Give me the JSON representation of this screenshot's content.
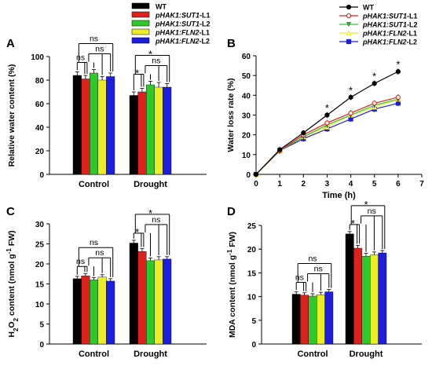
{
  "colors": {
    "WT": "#000000",
    "pHAK1:SUT1-L1": "#e0201b",
    "pHAK1:SUT1-L2": "#2fc92c",
    "pHAK1:FLN2-L1": "#eded26",
    "pHAK1:FLN2-L2": "#1d1ddd"
  },
  "chart_data": [
    {
      "panel": "A",
      "type": "bar",
      "ylabel": "Relative water content (%)",
      "ylim": [
        0,
        100
      ],
      "yticks": [
        0,
        20,
        40,
        60,
        80,
        100
      ],
      "categories": [
        "Control",
        "Drought"
      ],
      "legend": {
        "placement": "top-right",
        "entries": [
          "WT",
          "pHAK1:SUT1-L1",
          "pHAK1:SUT1-L2",
          "pHAK1:FLN2-L1",
          "pHAK1:FLN2-L2"
        ]
      },
      "series": [
        {
          "name": "WT",
          "values": [
            84,
            67
          ],
          "errors": [
            3,
            3
          ]
        },
        {
          "name": "pHAK1:SUT1-L1",
          "values": [
            81,
            70
          ],
          "errors": [
            3,
            3
          ]
        },
        {
          "name": "pHAK1:SUT1-L2",
          "values": [
            86,
            76
          ],
          "errors": [
            3,
            3
          ]
        },
        {
          "name": "pHAK1:FLN2-L1",
          "values": [
            80,
            74
          ],
          "errors": [
            3,
            4
          ]
        },
        {
          "name": "pHAK1:FLN2-L2",
          "values": [
            83,
            74
          ],
          "errors": [
            3,
            3
          ]
        }
      ],
      "significance": [
        {
          "group": "Control",
          "labels": [
            "ns",
            "ns",
            "ns"
          ]
        },
        {
          "group": "Drought",
          "labels": [
            "*",
            "ns",
            "*"
          ]
        }
      ]
    },
    {
      "panel": "B",
      "type": "line",
      "xlabel": "Time (h)",
      "ylabel": "Water loss rate (%)",
      "xlim": [
        0,
        7
      ],
      "ylim": [
        0,
        60
      ],
      "xticks": [
        0,
        1,
        2,
        3,
        4,
        5,
        6,
        7
      ],
      "yticks": [
        0,
        10,
        20,
        30,
        40,
        50,
        60
      ],
      "x": [
        0,
        1,
        2,
        3,
        4,
        5,
        6
      ],
      "legend": {
        "placement": "top-right",
        "entries": [
          "WT",
          "pHAK1:SUT1-L1",
          "pHAK1:SUT1-L2",
          "pHAK1:FLN2-L1",
          "pHAK1:FLN2-L2"
        ]
      },
      "series": [
        {
          "name": "WT",
          "values": [
            0,
            12.5,
            21,
            30,
            39,
            46,
            52
          ]
        },
        {
          "name": "pHAK1:SUT1-L1",
          "values": [
            0,
            12,
            20,
            26,
            31,
            36,
            39
          ]
        },
        {
          "name": "pHAK1:SUT1-L2",
          "values": [
            0,
            12,
            19,
            25,
            30,
            35,
            38
          ]
        },
        {
          "name": "pHAK1:FLN2-L1",
          "values": [
            0,
            12,
            19,
            24,
            30,
            34,
            38
          ]
        },
        {
          "name": "pHAK1:FLN2-L2",
          "values": [
            0,
            12,
            18,
            23,
            28,
            33,
            36
          ]
        }
      ],
      "annotations": [
        {
          "x": 3,
          "label": "*"
        },
        {
          "x": 4,
          "label": "*"
        },
        {
          "x": 5,
          "label": "*"
        },
        {
          "x": 6,
          "label": "*"
        }
      ]
    },
    {
      "panel": "C",
      "type": "bar",
      "ylabel": "H2O2 content (nmol g-1 FW)",
      "ylim": [
        0,
        30
      ],
      "yticks": [
        0,
        5,
        10,
        15,
        20,
        25,
        30
      ],
      "categories": [
        "Control",
        "Drought"
      ],
      "series": [
        {
          "name": "WT",
          "values": [
            16.3,
            25.2
          ],
          "errors": [
            0.6,
            0.7
          ]
        },
        {
          "name": "pHAK1:SUT1-L1",
          "values": [
            17.0,
            23.1
          ],
          "errors": [
            0.6,
            0.7
          ]
        },
        {
          "name": "pHAK1:SUT1-L2",
          "values": [
            16.0,
            20.8
          ],
          "errors": [
            0.6,
            0.7
          ]
        },
        {
          "name": "pHAK1:FLN2-L1",
          "values": [
            16.7,
            21.0
          ],
          "errors": [
            0.6,
            0.8
          ]
        },
        {
          "name": "pHAK1:FLN2-L2",
          "values": [
            15.7,
            21.2
          ],
          "errors": [
            0.6,
            0.6
          ]
        }
      ],
      "significance": [
        {
          "group": "Control",
          "labels": [
            "ns",
            "ns",
            "ns"
          ]
        },
        {
          "group": "Drought",
          "labels": [
            "*",
            "ns",
            "*"
          ]
        }
      ]
    },
    {
      "panel": "D",
      "type": "bar",
      "ylabel": "MDA content (nmol g-1 FW)",
      "ylim": [
        0,
        25
      ],
      "yticks": [
        0,
        5,
        10,
        15,
        20,
        25
      ],
      "categories": [
        "Control",
        "Drought"
      ],
      "series": [
        {
          "name": "WT",
          "values": [
            10.5,
            23.2
          ],
          "errors": [
            0.5,
            0.5
          ]
        },
        {
          "name": "pHAK1:SUT1-L1",
          "values": [
            10.3,
            20.2
          ],
          "errors": [
            0.5,
            0.6
          ]
        },
        {
          "name": "pHAK1:SUT1-L2",
          "values": [
            10.1,
            18.5
          ],
          "errors": [
            0.5,
            0.6
          ]
        },
        {
          "name": "pHAK1:FLN2-L1",
          "values": [
            10.4,
            18.8
          ],
          "errors": [
            0.5,
            0.6
          ]
        },
        {
          "name": "pHAK1:FLN2-L2",
          "values": [
            11.0,
            19.2
          ],
          "errors": [
            0.5,
            0.5
          ]
        }
      ],
      "significance": [
        {
          "group": "Control",
          "labels": [
            "ns",
            "ns",
            "ns"
          ]
        },
        {
          "group": "Drought",
          "labels": [
            "*",
            "ns",
            "*"
          ]
        }
      ]
    }
  ]
}
